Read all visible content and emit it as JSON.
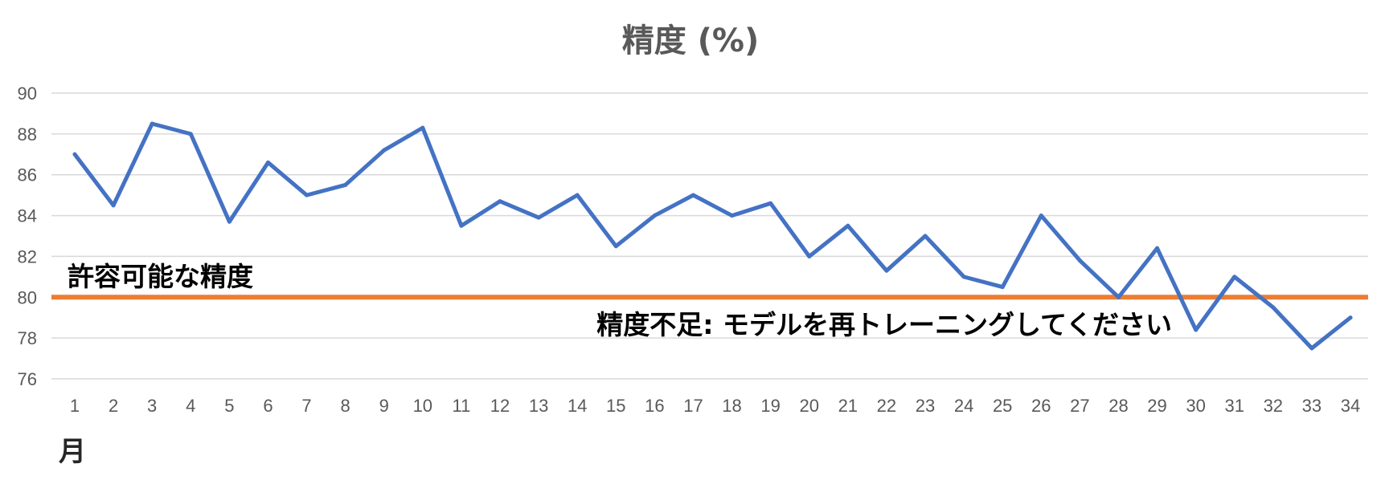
{
  "chart_data": {
    "type": "line",
    "title": "精度 (%)",
    "xlabel": "月",
    "ylabel": "",
    "ylim": [
      76,
      90
    ],
    "yticks": [
      76,
      78,
      80,
      82,
      84,
      86,
      88,
      90
    ],
    "grid": true,
    "legend": "none",
    "x": [
      1,
      2,
      3,
      4,
      5,
      6,
      7,
      8,
      9,
      10,
      11,
      12,
      13,
      14,
      15,
      16,
      17,
      18,
      19,
      20,
      21,
      22,
      23,
      24,
      25,
      26,
      27,
      28,
      29,
      30,
      31,
      32,
      33,
      34
    ],
    "series": [
      {
        "values": [
          87.0,
          84.5,
          88.5,
          88.0,
          83.7,
          86.6,
          85.0,
          85.5,
          87.2,
          88.3,
          83.5,
          84.7,
          83.9,
          85.0,
          82.5,
          84.0,
          85.0,
          84.0,
          84.6,
          82.0,
          83.5,
          81.3,
          83.0,
          81.0,
          80.5,
          84.0,
          81.8,
          80.0,
          82.4,
          78.4,
          81.0,
          79.5,
          77.5,
          79.0
        ],
        "color": "#4472c4"
      }
    ],
    "threshold": {
      "value": 80,
      "color": "#ed7d31",
      "label_above": "許容可能な精度",
      "label_below": "精度不足: モデルを再トレーニングしてください"
    }
  }
}
